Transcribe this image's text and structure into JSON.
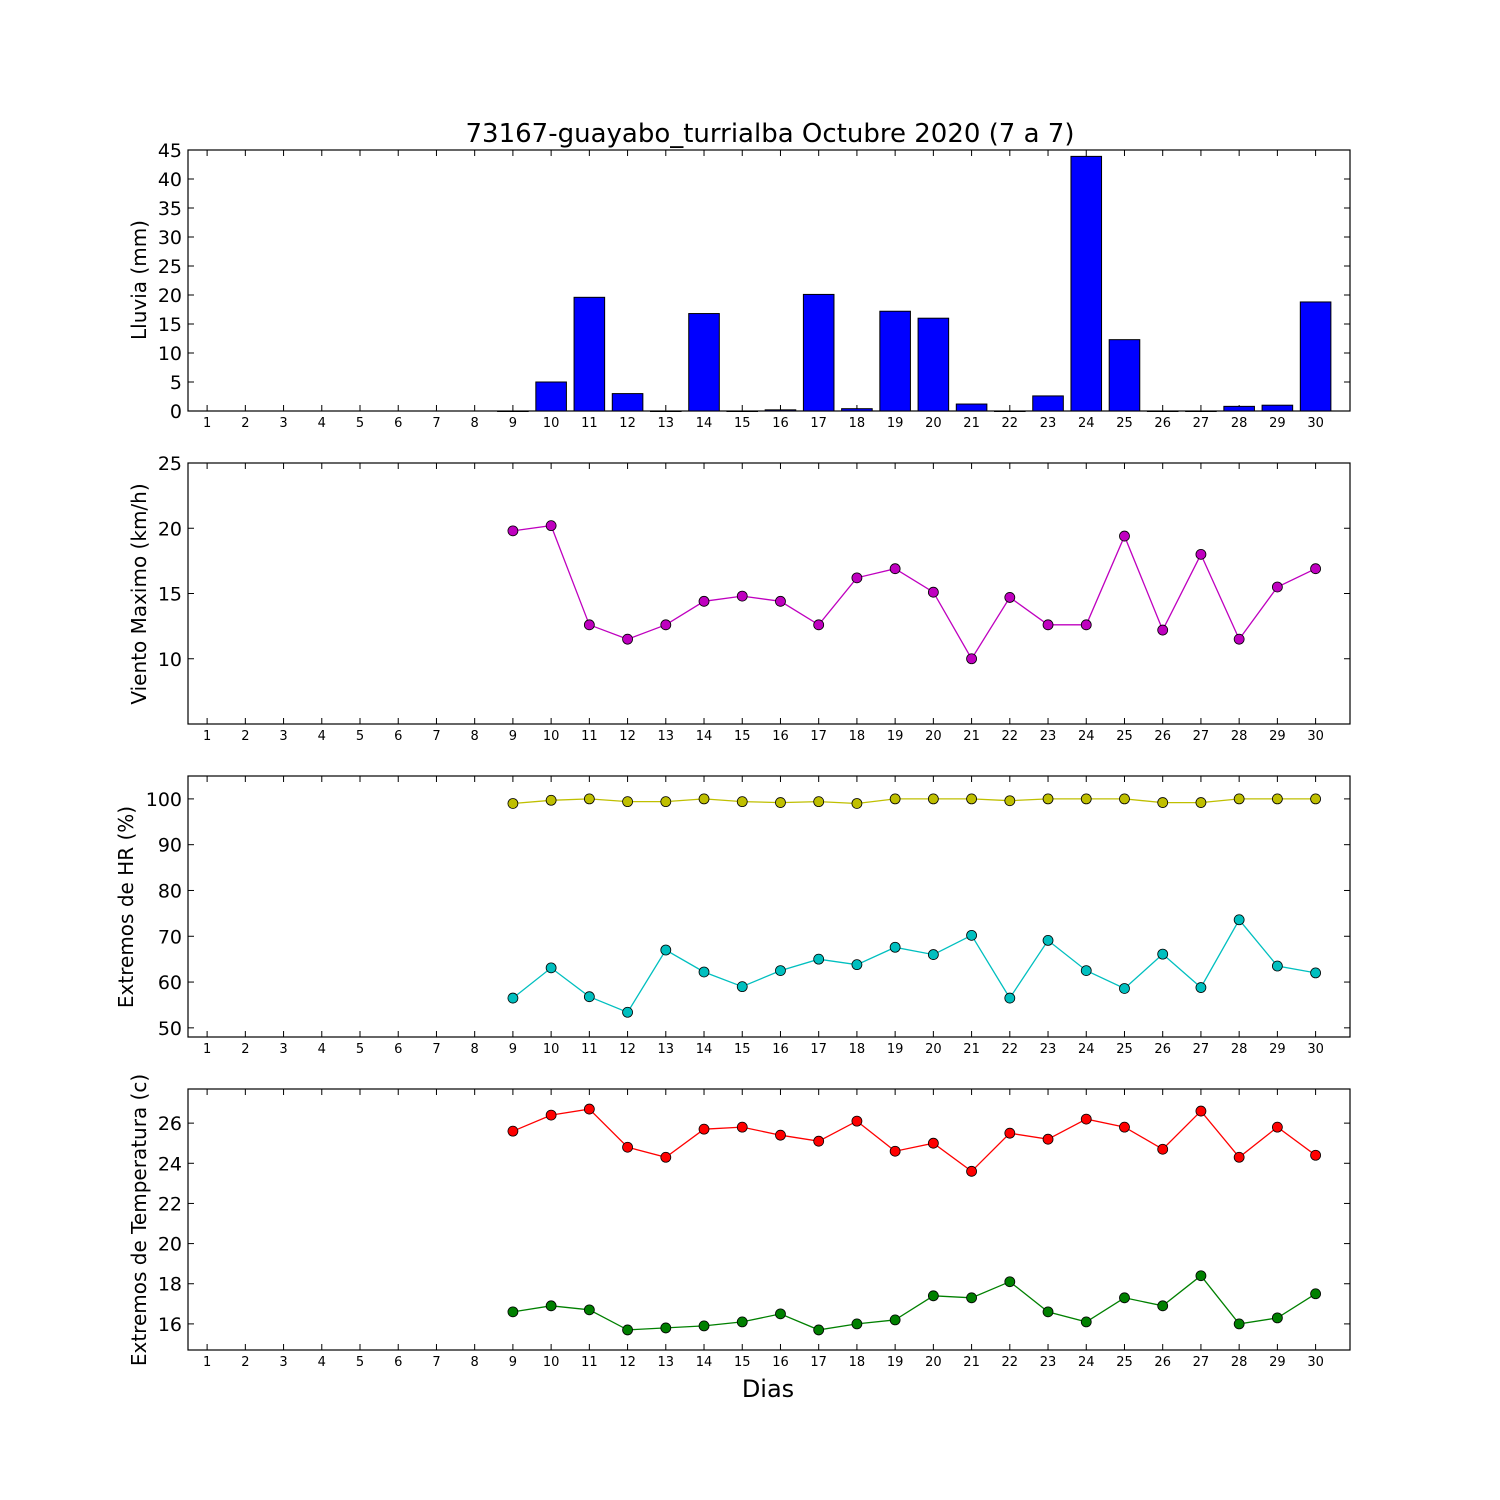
{
  "chart_data": [
    {
      "type": "bar",
      "title": "73167-guayabo_turrialba Octubre 2020  (7 a 7)",
      "ylabel": "Lluvia (mm)",
      "xlabel": "",
      "ylim": [
        0,
        45
      ],
      "yticks": [
        0,
        5,
        10,
        15,
        20,
        25,
        30,
        35,
        40,
        45
      ],
      "categories": [
        "1",
        "2",
        "3",
        "4",
        "5",
        "6",
        "7",
        "8",
        "9",
        "10",
        "11",
        "12",
        "13",
        "14",
        "15",
        "16",
        "17",
        "18",
        "19",
        "20",
        "21",
        "22",
        "23",
        "24",
        "25",
        "26",
        "27",
        "28",
        "29",
        "30"
      ],
      "series": [
        {
          "color": "#0000ff",
          "values": [
            null,
            null,
            null,
            null,
            null,
            null,
            null,
            null,
            0,
            5.0,
            19.6,
            3.0,
            0,
            16.8,
            0,
            0.2,
            20.1,
            0.4,
            17.2,
            16.0,
            1.2,
            0,
            2.6,
            43.9,
            12.3,
            0,
            0,
            0.8,
            1.0,
            18.8
          ]
        }
      ],
      "grid": false
    },
    {
      "type": "line",
      "title": "",
      "ylabel": "Viento Maximo (km/h)",
      "xlabel": "",
      "ylim": [
        5,
        25
      ],
      "yticks": [
        10,
        15,
        20,
        25
      ],
      "categories": [
        "1",
        "2",
        "3",
        "4",
        "5",
        "6",
        "7",
        "8",
        "9",
        "10",
        "11",
        "12",
        "13",
        "14",
        "15",
        "16",
        "17",
        "18",
        "19",
        "20",
        "21",
        "22",
        "23",
        "24",
        "25",
        "26",
        "27",
        "28",
        "29",
        "30"
      ],
      "series": [
        {
          "color": "#bf00bf",
          "values": [
            null,
            null,
            null,
            null,
            null,
            null,
            null,
            null,
            19.8,
            20.2,
            12.6,
            11.5,
            12.6,
            14.4,
            14.8,
            14.4,
            12.6,
            16.2,
            16.9,
            15.1,
            10.0,
            14.7,
            12.6,
            12.6,
            19.4,
            12.2,
            18.0,
            11.5,
            15.5,
            16.9
          ]
        }
      ],
      "grid": false
    },
    {
      "type": "line",
      "title": "",
      "ylabel": "Extremos de HR (%)",
      "xlabel": "",
      "ylim": [
        48,
        105
      ],
      "yticks": [
        50,
        60,
        70,
        80,
        90,
        100
      ],
      "categories": [
        "1",
        "2",
        "3",
        "4",
        "5",
        "6",
        "7",
        "8",
        "9",
        "10",
        "11",
        "12",
        "13",
        "14",
        "15",
        "16",
        "17",
        "18",
        "19",
        "20",
        "21",
        "22",
        "23",
        "24",
        "25",
        "26",
        "27",
        "28",
        "29",
        "30"
      ],
      "series": [
        {
          "color": "#bfbf00",
          "values": [
            null,
            null,
            null,
            null,
            null,
            null,
            null,
            null,
            99,
            99.7,
            100,
            99.4,
            99.4,
            100,
            99.4,
            99.2,
            99.4,
            99,
            100,
            100,
            100,
            99.6,
            100,
            100,
            100,
            99.2,
            99.2,
            100,
            100,
            100
          ]
        },
        {
          "color": "#00bfbf",
          "values": [
            null,
            null,
            null,
            null,
            null,
            null,
            null,
            null,
            56.5,
            63.1,
            56.8,
            53.4,
            67,
            62.2,
            59,
            62.5,
            65,
            63.8,
            67.6,
            66,
            70.2,
            56.5,
            69.1,
            62.5,
            58.6,
            66.1,
            58.8,
            73.6,
            63.5,
            62
          ]
        }
      ],
      "grid": false
    },
    {
      "type": "line",
      "title": "",
      "ylabel": "Extremos de Temperatura (c)",
      "xlabel": "Dias",
      "ylim": [
        14.7,
        27.7
      ],
      "yticks": [
        16,
        18,
        20,
        22,
        24,
        26
      ],
      "categories": [
        "1",
        "2",
        "3",
        "4",
        "5",
        "6",
        "7",
        "8",
        "9",
        "10",
        "11",
        "12",
        "13",
        "14",
        "15",
        "16",
        "17",
        "18",
        "19",
        "20",
        "21",
        "22",
        "23",
        "24",
        "25",
        "26",
        "27",
        "28",
        "29",
        "30"
      ],
      "series": [
        {
          "color": "#ff0000",
          "values": [
            null,
            null,
            null,
            null,
            null,
            null,
            null,
            null,
            25.6,
            26.4,
            26.7,
            24.8,
            24.3,
            25.7,
            25.8,
            25.4,
            25.1,
            26.1,
            24.6,
            25.0,
            23.6,
            25.5,
            25.2,
            26.2,
            25.8,
            24.7,
            26.6,
            24.3,
            25.8,
            24.4
          ]
        },
        {
          "color": "#008000",
          "values": [
            null,
            null,
            null,
            null,
            null,
            null,
            null,
            null,
            16.6,
            16.9,
            16.7,
            15.7,
            15.8,
            15.9,
            16.1,
            16.5,
            15.7,
            16.0,
            16.2,
            17.4,
            17.3,
            18.1,
            16.6,
            16.1,
            17.3,
            16.9,
            18.4,
            16.0,
            16.3,
            17.5
          ]
        }
      ],
      "grid": false
    }
  ]
}
